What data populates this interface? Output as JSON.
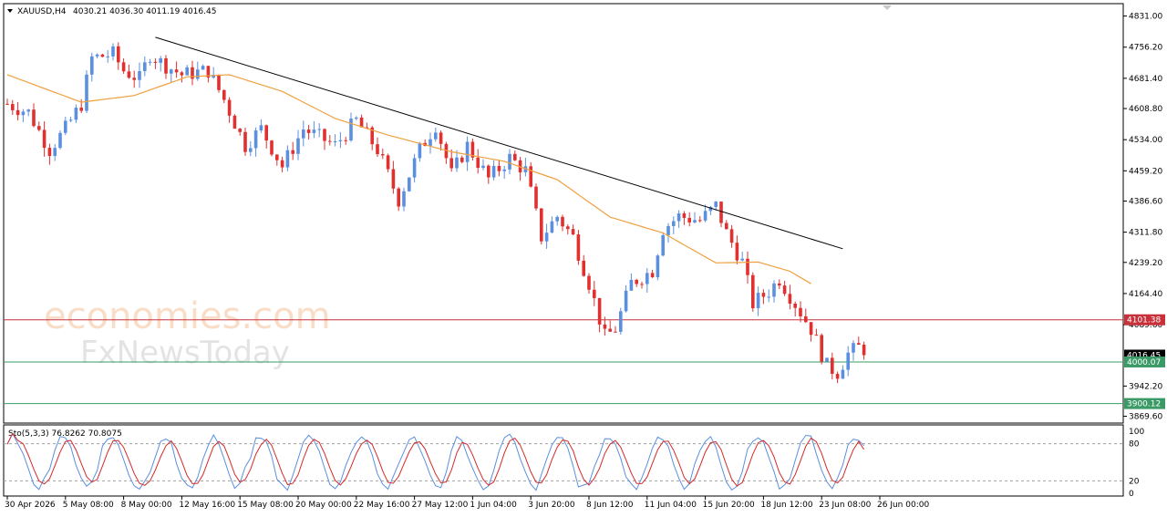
{
  "header": {
    "symbol": "XAUUSD,H4",
    "ohlc": "4030.21 4036.30 4011.19 4016.45"
  },
  "stoch_header": "Sto(5,3,3) 76.8262 70.8075",
  "watermark": {
    "line1": "economies.com",
    "line2": "FxNewsToday"
  },
  "colors": {
    "bull": "#5b8fe0",
    "bear": "#e0302f",
    "ma": "#f0a040",
    "trend": "#000000",
    "resistance": "#c8303a",
    "support": "#3a9a66",
    "stoch_main": "#5b8fe0",
    "stoch_signal": "#d42a2a"
  },
  "chart_data": {
    "type": "candlestick",
    "price_axis": {
      "ticks": [
        "4831.00",
        "4756.20",
        "4681.40",
        "4608.80",
        "4534.00",
        "4459.20",
        "4386.60",
        "4311.80",
        "4239.20",
        "4164.40",
        "4089.60",
        "3942.20",
        "3869.60"
      ],
      "tick_values": [
        4831.0,
        4756.2,
        4681.4,
        4608.8,
        4534.0,
        4459.2,
        4386.6,
        4311.8,
        4239.2,
        4164.4,
        4089.6,
        3942.2,
        3869.6
      ],
      "ylim": [
        3862,
        4852
      ]
    },
    "price_levels": [
      {
        "name": "resistance",
        "label": "4101.38",
        "value": 4101.38,
        "color": "#c8303a"
      },
      {
        "name": "current",
        "label": "4016.45",
        "value": 4016.45,
        "color": "#000000"
      },
      {
        "name": "support",
        "label": "4000.07",
        "value": 4000.07,
        "color": "#3a9a66"
      },
      {
        "name": "support-2",
        "label": "3900.12",
        "value": 3900.12,
        "color": "#3a9a66"
      }
    ],
    "trendline": {
      "from": {
        "bar": 28,
        "price": 4780
      },
      "to": {
        "bar": 158,
        "price": 4272
      }
    },
    "moving_average_waypoints": [
      {
        "bar": 0,
        "price": 4690
      },
      {
        "bar": 14,
        "price": 4624
      },
      {
        "bar": 24,
        "price": 4640
      },
      {
        "bar": 34,
        "price": 4685
      },
      {
        "bar": 42,
        "price": 4690
      },
      {
        "bar": 52,
        "price": 4650
      },
      {
        "bar": 62,
        "price": 4585
      },
      {
        "bar": 72,
        "price": 4545
      },
      {
        "bar": 84,
        "price": 4505
      },
      {
        "bar": 94,
        "price": 4482
      },
      {
        "bar": 104,
        "price": 4438
      },
      {
        "bar": 114,
        "price": 4348
      },
      {
        "bar": 124,
        "price": 4310
      },
      {
        "bar": 134,
        "price": 4238
      },
      {
        "bar": 142,
        "price": 4240
      },
      {
        "bar": 148,
        "price": 4218
      },
      {
        "bar": 152,
        "price": 4188
      }
    ],
    "price_waypoints": [
      {
        "bar": 0,
        "price": 4620
      },
      {
        "bar": 4,
        "price": 4600
      },
      {
        "bar": 8,
        "price": 4510
      },
      {
        "bar": 11,
        "price": 4560
      },
      {
        "bar": 14,
        "price": 4620
      },
      {
        "bar": 16,
        "price": 4730
      },
      {
        "bar": 20,
        "price": 4740
      },
      {
        "bar": 22,
        "price": 4700
      },
      {
        "bar": 25,
        "price": 4680
      },
      {
        "bar": 27,
        "price": 4740
      },
      {
        "bar": 29,
        "price": 4720
      },
      {
        "bar": 33,
        "price": 4690
      },
      {
        "bar": 38,
        "price": 4700
      },
      {
        "bar": 41,
        "price": 4630
      },
      {
        "bar": 45,
        "price": 4520
      },
      {
        "bar": 48,
        "price": 4560
      },
      {
        "bar": 52,
        "price": 4470
      },
      {
        "bar": 56,
        "price": 4560
      },
      {
        "bar": 62,
        "price": 4520
      },
      {
        "bar": 66,
        "price": 4580
      },
      {
        "bar": 70,
        "price": 4510
      },
      {
        "bar": 74,
        "price": 4390
      },
      {
        "bar": 78,
        "price": 4510
      },
      {
        "bar": 81,
        "price": 4570
      },
      {
        "bar": 84,
        "price": 4450
      },
      {
        "bar": 87,
        "price": 4520
      },
      {
        "bar": 91,
        "price": 4440
      },
      {
        "bar": 95,
        "price": 4490
      },
      {
        "bar": 98,
        "price": 4460
      },
      {
        "bar": 101,
        "price": 4300
      },
      {
        "bar": 104,
        "price": 4350
      },
      {
        "bar": 107,
        "price": 4300
      },
      {
        "bar": 110,
        "price": 4190
      },
      {
        "bar": 113,
        "price": 4060
      },
      {
        "bar": 115,
        "price": 4080
      },
      {
        "bar": 118,
        "price": 4190
      },
      {
        "bar": 122,
        "price": 4220
      },
      {
        "bar": 124,
        "price": 4320
      },
      {
        "bar": 127,
        "price": 4350
      },
      {
        "bar": 131,
        "price": 4340
      },
      {
        "bar": 134,
        "price": 4375
      },
      {
        "bar": 136,
        "price": 4310
      },
      {
        "bar": 139,
        "price": 4240
      },
      {
        "bar": 141,
        "price": 4140
      },
      {
        "bar": 144,
        "price": 4170
      },
      {
        "bar": 146,
        "price": 4200
      },
      {
        "bar": 149,
        "price": 4140
      },
      {
        "bar": 152,
        "price": 4080
      },
      {
        "bar": 155,
        "price": 3990
      },
      {
        "bar": 157,
        "price": 3975
      },
      {
        "bar": 159,
        "price": 4020
      },
      {
        "bar": 161,
        "price": 4035
      },
      {
        "bar": 162,
        "price": 4016
      }
    ],
    "bar_count": 163,
    "stochastic": {
      "name": "Sto(5,3,3)",
      "main": 76.8262,
      "signal": 70.8075,
      "ticks": [
        "100",
        "80",
        "20",
        "0"
      ],
      "tick_values": [
        100,
        80,
        20,
        0
      ],
      "levels": [
        80,
        20
      ]
    },
    "x_labels": [
      {
        "bar": 0,
        "text": "30 Apr 2026"
      },
      {
        "bar": 11,
        "text": "5 May 08:00"
      },
      {
        "bar": 22,
        "text": "8 May 00:00"
      },
      {
        "bar": 33,
        "text": "12 May 16:00"
      },
      {
        "bar": 44,
        "text": "15 May 08:00"
      },
      {
        "bar": 55,
        "text": "20 May 00:00"
      },
      {
        "bar": 66,
        "text": "22 May 16:00"
      },
      {
        "bar": 77,
        "text": "27 May 12:00"
      },
      {
        "bar": 88,
        "text": "1 Jun 04:00"
      },
      {
        "bar": 99,
        "text": "3 Jun 20:00"
      },
      {
        "bar": 110,
        "text": "8 Jun 12:00"
      },
      {
        "bar": 121,
        "text": "11 Jun 04:00"
      },
      {
        "bar": 132,
        "text": "15 Jun 20:00"
      },
      {
        "bar": 143,
        "text": "18 Jun 12:00"
      },
      {
        "bar": 154,
        "text": "23 Jun 08:00"
      },
      {
        "bar": 165,
        "text": "26 Jun 00:00"
      }
    ]
  }
}
